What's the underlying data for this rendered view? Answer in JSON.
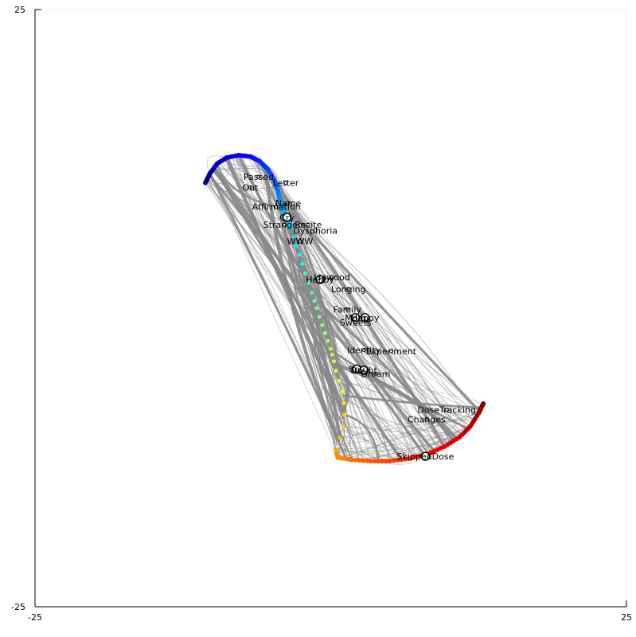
{
  "chart_data": {
    "type": "scatter",
    "title": "",
    "xlabel": "",
    "ylabel": "",
    "xlim": [
      -25,
      25
    ],
    "ylim": [
      -25,
      25
    ],
    "x_ticks": [
      "-25",
      "25"
    ],
    "y_ticks": [
      "-25",
      "25"
    ],
    "grid": false,
    "edge_color": "#888888",
    "arc_colormap": "jet",
    "nodes": [
      {
        "label": "Passed",
        "x": -6.1,
        "y": 11.0
      },
      {
        "label": "Out",
        "x": -6.8,
        "y": 10.1
      },
      {
        "label": "Letter",
        "x": -3.8,
        "y": 10.5
      },
      {
        "label": "Name",
        "x": -3.6,
        "y": 8.8
      },
      {
        "label": "Affirmation",
        "x": -4.6,
        "y": 8.5
      },
      {
        "label": "Cry",
        "x": -3.7,
        "y": 7.6
      },
      {
        "label": "Strangers",
        "x": -3.9,
        "y": 7.0
      },
      {
        "label": "Recite",
        "x": -1.9,
        "y": 7.0
      },
      {
        "label": "Dysphoria",
        "x": -1.3,
        "y": 6.5
      },
      {
        "label": "WWW",
        "x": -2.6,
        "y": 5.6
      },
      {
        "label": "Hobby",
        "x": -0.9,
        "y": 2.4
      },
      {
        "label": "Lipwood",
        "x": 0.1,
        "y": 2.6
      },
      {
        "label": "Longing",
        "x": 1.5,
        "y": 1.6
      },
      {
        "label": "Family",
        "x": 1.4,
        "y": -0.1
      },
      {
        "label": "Happy",
        "x": 2.9,
        "y": -0.8
      },
      {
        "label": "Mom",
        "x": 2.1,
        "y": -0.8
      },
      {
        "label": "Sweets",
        "x": 2.1,
        "y": -1.2
      },
      {
        "label": "Identity",
        "x": 2.8,
        "y": -3.5
      },
      {
        "label": "Experiment",
        "x": 5.1,
        "y": -3.6
      },
      {
        "label": "Spy",
        "x": 2.2,
        "y": -5.1
      },
      {
        "label": "Doubt",
        "x": 2.8,
        "y": -5.2
      },
      {
        "label": "Dream",
        "x": 3.8,
        "y": -5.5
      },
      {
        "label": "DoseTracking",
        "x": 9.8,
        "y": -8.5
      },
      {
        "label": "Changes",
        "x": 8.1,
        "y": -9.3
      },
      {
        "label": "SkippedDose",
        "x": 8.0,
        "y": -12.4
      }
    ]
  }
}
